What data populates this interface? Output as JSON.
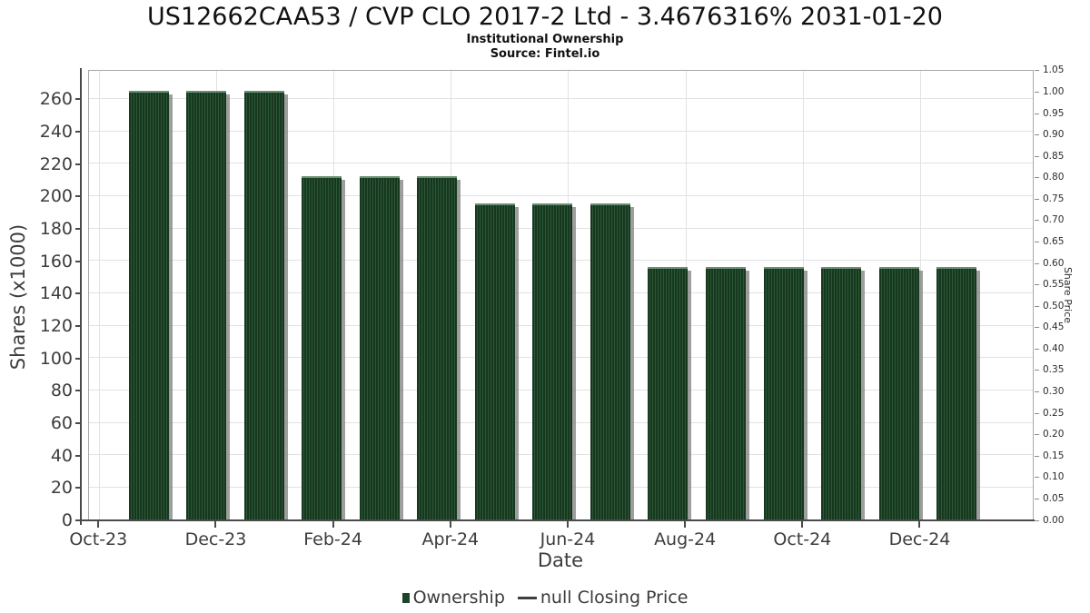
{
  "chart_title": "US12662CAA53 / CVP CLO 2017-2 Ltd - 3.4676316% 2031-01-20",
  "subtitle": "Institutional Ownership",
  "source": "Source: Fintel.io",
  "axes": {
    "x_label": "Date",
    "y_left_label": "Shares (x1000)",
    "y_right_label": "Share Price"
  },
  "legend": {
    "position": "bottom-center",
    "items": [
      {
        "label": "Ownership",
        "marker": "square",
        "color": "#1e4527"
      },
      {
        "label": "null Closing Price",
        "marker": "line",
        "color": "#3f3f3f"
      }
    ]
  },
  "colors": {
    "bar_fill": "#1e4527",
    "bar_hatch_dark": "#17381e",
    "bar_hatch_light": "#2b5737",
    "bar_shadow": "#7d7d7d",
    "gridline": "#e2e2e2",
    "frame": "#a8a8a8",
    "spine": "#4a4a4a",
    "tick_text": "#3d3d3d"
  },
  "chart_data": {
    "type": "bar",
    "title": "US12662CAA53 / CVP CLO 2017-2 Ltd - 3.4676316% 2031-01-20",
    "subtitle": "Institutional Ownership",
    "source": "Source: Fintel.io",
    "xlabel": "Date",
    "ylabel_left": "Shares (x1000)",
    "ylabel_right": "Share Price",
    "series_name": "Ownership",
    "categories": [
      "Nov-23",
      "Dec-23",
      "Jan-24",
      "Feb-24",
      "Mar-24",
      "Apr-24",
      "May-24",
      "Jun-24",
      "Jul-24",
      "Aug-24",
      "Sep-24",
      "Oct-24",
      "Nov-24",
      "Dec-24",
      "Jan-25"
    ],
    "values": [
      265,
      265,
      265,
      212,
      212,
      212,
      195,
      195,
      195,
      156,
      156,
      156,
      156,
      156,
      156
    ],
    "values_unit": "thousands of shares",
    "closing_price_series": {
      "name": "null Closing Price",
      "values": []
    },
    "x_tick_labels": [
      "Oct-23",
      "Dec-23",
      "Feb-24",
      "Apr-24",
      "Jun-24",
      "Aug-24",
      "Oct-24",
      "Dec-24"
    ],
    "y_left_ticks": [
      0,
      20,
      40,
      60,
      80,
      100,
      120,
      140,
      160,
      180,
      200,
      220,
      240,
      260
    ],
    "y_right_ticks": [
      0.0,
      0.05,
      0.1,
      0.15,
      0.2,
      0.25,
      0.3,
      0.35,
      0.4,
      0.45,
      0.5,
      0.55,
      0.6,
      0.65,
      0.7,
      0.75,
      0.8,
      0.85,
      0.9,
      0.95,
      1.0,
      1.05
    ],
    "ylim_left": [
      0,
      278
    ],
    "ylim_right": [
      0,
      1.052
    ],
    "grid": true,
    "legend_position": "bottom"
  }
}
